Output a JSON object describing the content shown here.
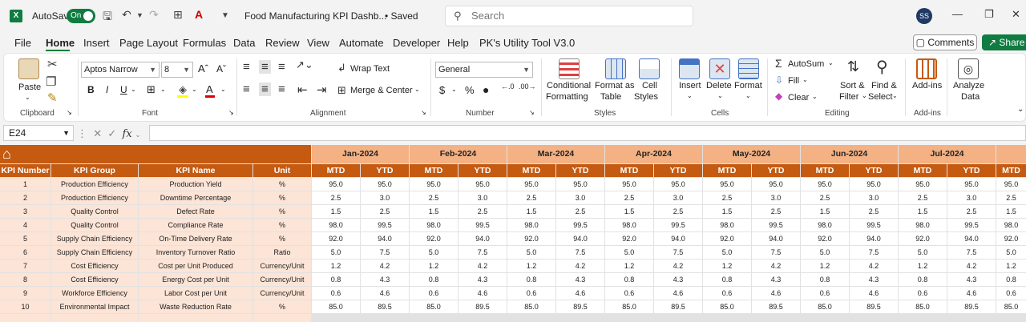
{
  "title_bar": {
    "autosave_label": "AutoSave",
    "autosave_state": "On",
    "document_title": "Food Manufacturing KPI Dashb...",
    "save_status": "• Saved",
    "search_placeholder": "Search",
    "user_initials": "SS"
  },
  "menu": {
    "items": [
      "File",
      "Home",
      "Insert",
      "Page Layout",
      "Formulas",
      "Data",
      "Review",
      "View",
      "Automate",
      "Developer",
      "Help",
      "PK's Utility Tool V3.0"
    ],
    "active": "Home",
    "comments_label": "Comments",
    "share_label": "Share"
  },
  "ribbon": {
    "clipboard": {
      "paste": "Paste",
      "group_label": "Clipboard"
    },
    "font": {
      "font_name": "Aptos Narrow",
      "font_size": "8",
      "group_label": "Font"
    },
    "alignment": {
      "wrap_text": "Wrap Text",
      "merge_center": "Merge & Center",
      "group_label": "Alignment"
    },
    "number": {
      "format": "General",
      "group_label": "Number"
    },
    "styles": {
      "conditional_1": "Conditional",
      "conditional_2": "Formatting",
      "format_as_1": "Format as",
      "format_as_2": "Table",
      "cell_styles_1": "Cell",
      "cell_styles_2": "Styles",
      "group_label": "Styles"
    },
    "cells": {
      "insert": "Insert",
      "delete": "Delete",
      "format": "Format",
      "group_label": "Cells"
    },
    "editing": {
      "autosum": "AutoSum",
      "fill": "Fill",
      "clear": "Clear",
      "sort_1": "Sort &",
      "sort_2": "Filter",
      "find_1": "Find &",
      "find_2": "Select",
      "group_label": "Editing"
    },
    "addins": {
      "addins": "Add-ins",
      "group_label": "Add-ins"
    },
    "analyze": {
      "label_1": "Analyze",
      "label_2": "Data"
    }
  },
  "formula_bar": {
    "name_box": "E24",
    "formula": ""
  },
  "sheet": {
    "home_icon": "home-icon",
    "left_headers": [
      "KPI Number",
      "KPI Group",
      "KPI Name",
      "Unit"
    ],
    "months": [
      "Jan-2024",
      "Feb-2024",
      "Mar-2024",
      "Apr-2024",
      "May-2024",
      "Jun-2024",
      "Jul-2024"
    ],
    "sub_headers": [
      "MTD",
      "YTD"
    ],
    "extra_sub_header": "MTD",
    "rows": [
      {
        "num": "1",
        "group": "Production Efficiency",
        "name": "Production Yield",
        "unit": "%",
        "mtd": "95.0",
        "ytd": "95.0"
      },
      {
        "num": "2",
        "group": "Production Efficiency",
        "name": "Downtime Percentage",
        "unit": "%",
        "mtd": "2.5",
        "ytd": "3.0"
      },
      {
        "num": "3",
        "group": "Quality Control",
        "name": "Defect Rate",
        "unit": "%",
        "mtd": "1.5",
        "ytd": "2.5"
      },
      {
        "num": "4",
        "group": "Quality Control",
        "name": "Compliance Rate",
        "unit": "%",
        "mtd": "98.0",
        "ytd": "99.5"
      },
      {
        "num": "5",
        "group": "Supply Chain Efficiency",
        "name": "On-Time Delivery Rate",
        "unit": "%",
        "mtd": "92.0",
        "ytd": "94.0"
      },
      {
        "num": "6",
        "group": "Supply Chain Efficiency",
        "name": "Inventory Turnover Ratio",
        "unit": "Ratio",
        "mtd": "5.0",
        "ytd": "7.5"
      },
      {
        "num": "7",
        "group": "Cost Efficiency",
        "name": "Cost per Unit Produced",
        "unit": "Currency/Unit",
        "mtd": "1.2",
        "ytd": "4.2"
      },
      {
        "num": "8",
        "group": "Cost Efficiency",
        "name": "Energy Cost per Unit",
        "unit": "Currency/Unit",
        "mtd": "0.8",
        "ytd": "4.3"
      },
      {
        "num": "9",
        "group": "Workforce Efficiency",
        "name": "Labor Cost per Unit",
        "unit": "Currency/Unit",
        "mtd": "0.6",
        "ytd": "4.6"
      },
      {
        "num": "10",
        "group": "Environmental Impact",
        "name": "Waste Reduction Rate",
        "unit": "%",
        "mtd": "85.0",
        "ytd": "89.5"
      }
    ],
    "colors": {
      "header_dark": "#c55a11",
      "header_month": "#f4b183",
      "left_body": "#fce4d6"
    }
  }
}
